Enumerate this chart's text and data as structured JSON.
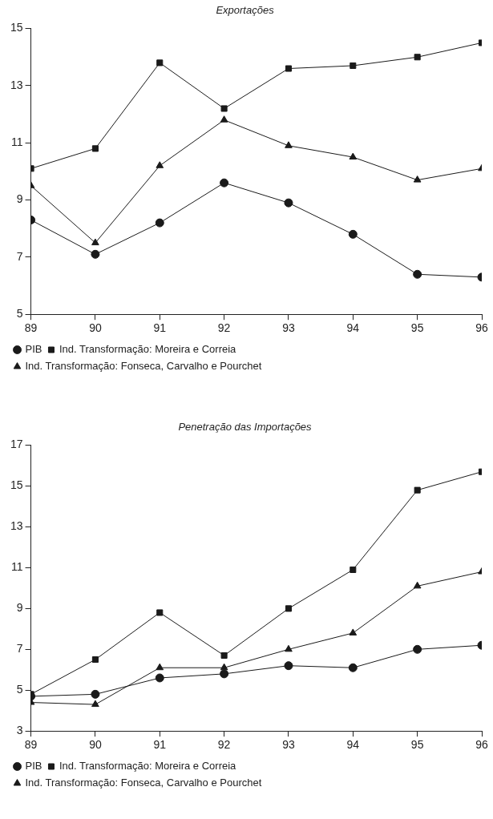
{
  "chart_data": [
    {
      "type": "line",
      "title": "Exportações",
      "x": [
        89,
        90,
        91,
        92,
        93,
        94,
        95,
        96
      ],
      "xlim": [
        89,
        96
      ],
      "xticks": [
        89,
        90,
        91,
        92,
        93,
        94,
        95,
        96
      ],
      "ylim": [
        5,
        15
      ],
      "yticks": [
        5,
        7,
        9,
        11,
        13,
        15
      ],
      "grid": false,
      "legend": "bottom",
      "series": [
        {
          "name": "PIB",
          "color": "#1a1a1a",
          "marker": "circle",
          "values": [
            8.3,
            7.1,
            8.2,
            9.6,
            8.9,
            7.8,
            6.4,
            6.3
          ]
        },
        {
          "name": "Ind. Transformação: Moreira e Correia",
          "color": "#1a1a1a",
          "marker": "square",
          "values": [
            10.1,
            10.8,
            13.8,
            12.2,
            13.6,
            13.7,
            14.0,
            14.5
          ]
        },
        {
          "name": "Ind. Transformação: Fonseca, Carvalho e Pourchet",
          "color": "#1a1a1a",
          "marker": "triangle",
          "values": [
            9.5,
            7.5,
            10.2,
            11.8,
            10.9,
            10.5,
            9.7,
            10.1
          ]
        }
      ]
    },
    {
      "type": "line",
      "title": "Penetração das Importações",
      "x": [
        89,
        90,
        91,
        92,
        93,
        94,
        95,
        96
      ],
      "xlim": [
        89,
        96
      ],
      "xticks": [
        89,
        90,
        91,
        92,
        93,
        94,
        95,
        96
      ],
      "ylim": [
        3,
        17
      ],
      "yticks": [
        3,
        5,
        7,
        9,
        11,
        13,
        15,
        17
      ],
      "grid": false,
      "legend": "bottom",
      "series": [
        {
          "name": "PIB",
          "color": "#1a1a1a",
          "marker": "circle",
          "values": [
            4.7,
            4.8,
            5.6,
            5.8,
            6.2,
            6.1,
            7.0,
            7.2
          ]
        },
        {
          "name": "Ind. Transformação: Moreira e Correia",
          "color": "#1a1a1a",
          "marker": "square",
          "values": [
            4.8,
            6.5,
            8.8,
            6.7,
            9.0,
            10.9,
            14.8,
            15.7
          ]
        },
        {
          "name": "Ind. Transformação: Fonseca, Carvalho e Pourchet",
          "color": "#1a1a1a",
          "marker": "triangle",
          "values": [
            4.4,
            4.3,
            6.1,
            6.1,
            7.0,
            7.8,
            10.1,
            10.8
          ]
        }
      ]
    }
  ]
}
